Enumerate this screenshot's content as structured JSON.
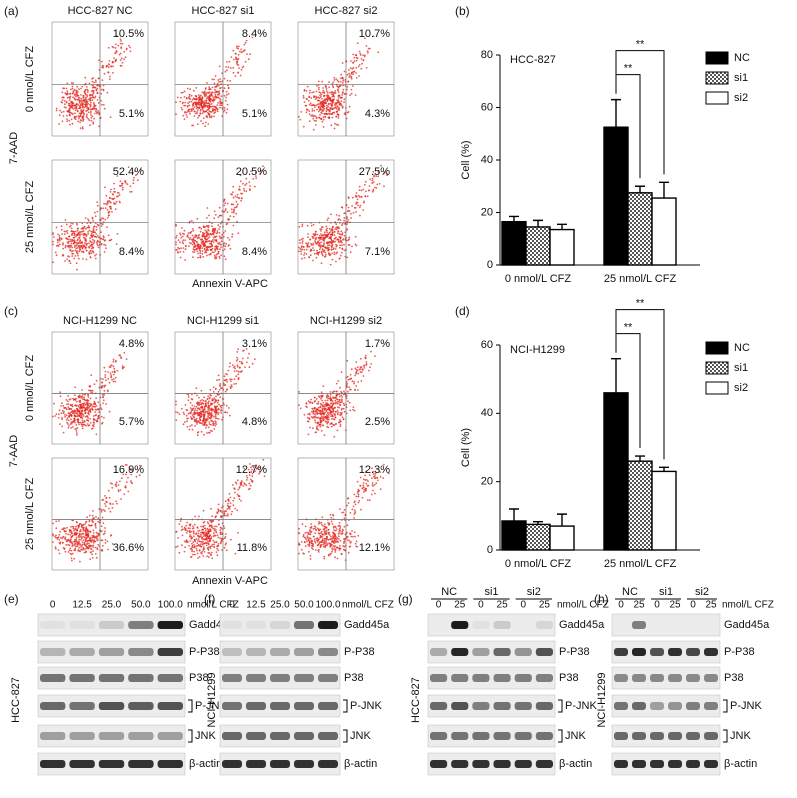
{
  "panel_labels": [
    "(a)",
    "(b)",
    "(c)",
    "(d)",
    "(e)",
    "(f)",
    "(g)",
    "(h)"
  ],
  "flow": [
    {
      "columns": [
        "HCC-827 NC",
        "HCC-827 si1",
        "HCC-827 si2"
      ],
      "rows": [
        "0 nmol/L CFZ",
        "25 nmol/L CFZ"
      ],
      "y_label": "7-AAD",
      "x_label": "Annexin V-APC",
      "upper": [
        [
          "10.5%",
          "8.4%",
          "10.7%"
        ],
        [
          "52.4%",
          "20.5%",
          "27.5%"
        ]
      ],
      "lower": [
        [
          "5.1%",
          "5.1%",
          "4.3%"
        ],
        [
          "8.4%",
          "8.4%",
          "7.1%"
        ]
      ]
    },
    {
      "columns": [
        "NCI-H1299 NC",
        "NCI-H1299 si1",
        "NCI-H1299 si2"
      ],
      "rows": [
        "0 nmol/L CFZ",
        "25 nmol/L CFZ"
      ],
      "y_label": "7-AAD",
      "x_label": "Annexin V-APC",
      "upper": [
        [
          "4.8%",
          "3.1%",
          "1.7%"
        ],
        [
          "16.9%",
          "12.7%",
          "12.3%"
        ]
      ],
      "lower": [
        [
          "5.7%",
          "4.8%",
          "2.5%"
        ],
        [
          "36.6%",
          "11.8%",
          "12.1%"
        ]
      ]
    }
  ],
  "chart_data": [
    {
      "type": "bar",
      "annotation": "HCC-827",
      "y_label": "Cell (%)",
      "categories": [
        "0 nmol/L CFZ",
        "25 nmol/L CFZ"
      ],
      "series": [
        {
          "name": "NC",
          "color": "#000000",
          "values": [
            16.5,
            52.5
          ],
          "errors": [
            2,
            10.5
          ]
        },
        {
          "name": "si1",
          "color": "#9a9a9a",
          "values": [
            14.5,
            27.5
          ],
          "errors": [
            2.5,
            2.5
          ]
        },
        {
          "name": "si2",
          "color": "#ffffff",
          "values": [
            13.5,
            25.5
          ],
          "errors": [
            2,
            6
          ]
        }
      ],
      "ylim": [
        0,
        80
      ],
      "yticks": [
        0,
        20,
        40,
        60,
        80
      ],
      "significance": [
        "**",
        "**"
      ]
    },
    {
      "type": "bar",
      "annotation": "NCI-H1299",
      "y_label": "Cell (%)",
      "categories": [
        "0 nmol/L CFZ",
        "25 nmol/L CFZ"
      ],
      "series": [
        {
          "name": "NC",
          "color": "#000000",
          "values": [
            8.5,
            46
          ],
          "errors": [
            3.5,
            10
          ]
        },
        {
          "name": "si1",
          "color": "#9a9a9a",
          "values": [
            7.5,
            26
          ],
          "errors": [
            0.8,
            1.5
          ]
        },
        {
          "name": "si2",
          "color": "#ffffff",
          "values": [
            7,
            23
          ],
          "errors": [
            3.5,
            1.2
          ]
        }
      ],
      "ylim": [
        0,
        60
      ],
      "yticks": [
        0,
        20,
        40,
        60
      ],
      "significance": [
        "**",
        "**"
      ]
    }
  ],
  "blots": [
    {
      "lanes": [
        "0",
        "12.5",
        "25.0",
        "50.0",
        "100.0"
      ],
      "unit": "nmol/L CFZ",
      "rows": [
        "Gadd45a",
        "P-P38",
        "P38",
        "P-JNK",
        "JNK",
        "β-actin"
      ],
      "cell_line": "HCC-827"
    },
    {
      "lanes": [
        "0",
        "12.5",
        "25.0",
        "50.0",
        "100.0"
      ],
      "unit": "nmol/L CFZ",
      "rows": [
        "Gadd45a",
        "P-P38",
        "P38",
        "P-JNK",
        "JNK",
        "β-actin"
      ],
      "cell_line": "NCI-H1299"
    },
    {
      "groups": [
        "NC",
        "si1",
        "si2"
      ],
      "lanes": [
        "0",
        "25",
        "0",
        "25",
        "0",
        "25"
      ],
      "unit": "nmol/L CFZ",
      "rows": [
        "Gadd45a",
        "P-P38",
        "P38",
        "P-JNK",
        "JNK",
        "β-actin"
      ],
      "cell_line": "HCC-827"
    },
    {
      "groups": [
        "NC",
        "si1",
        "si2"
      ],
      "lanes": [
        "0",
        "25",
        "0",
        "25",
        "0",
        "25"
      ],
      "unit": "nmol/L CFZ",
      "rows": [
        "Gadd45a",
        "P-P38",
        "P38",
        "P-JNK",
        "JNK",
        "β-actin"
      ],
      "cell_line": "NCI-H1299"
    }
  ]
}
